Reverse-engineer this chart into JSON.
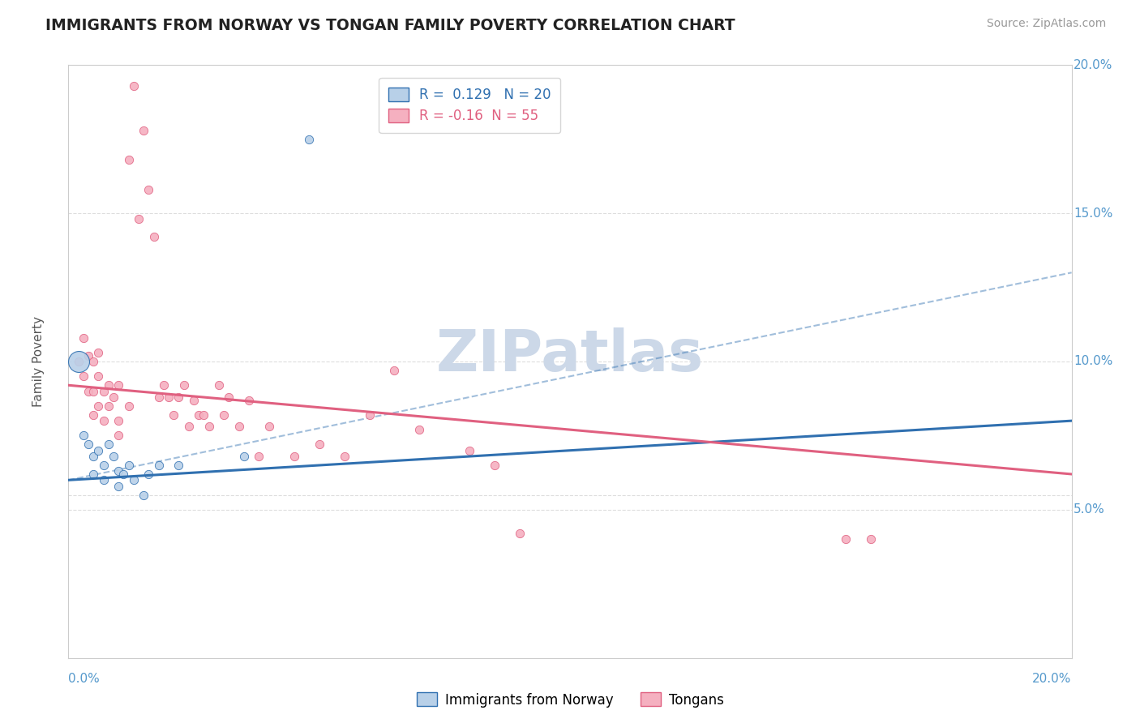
{
  "title": "IMMIGRANTS FROM NORWAY VS TONGAN FAMILY POVERTY CORRELATION CHART",
  "source": "Source: ZipAtlas.com",
  "ylabel": "Family Poverty",
  "xmin": 0.0,
  "xmax": 0.2,
  "ymin": 0.0,
  "ymax": 0.2,
  "yticks": [
    0.05,
    0.1,
    0.15,
    0.2
  ],
  "ytick_labels": [
    "5.0%",
    "10.0%",
    "15.0%",
    "20.0%"
  ],
  "norway_R": 0.129,
  "norway_N": 20,
  "tongan_R": -0.16,
  "tongan_N": 55,
  "norway_color": "#b8d0e8",
  "tongan_color": "#f5b0c0",
  "norway_line_color": "#3070b0",
  "tongan_line_color": "#e06080",
  "norway_scatter": [
    [
      0.003,
      0.075
    ],
    [
      0.004,
      0.072
    ],
    [
      0.005,
      0.068
    ],
    [
      0.005,
      0.062
    ],
    [
      0.006,
      0.07
    ],
    [
      0.007,
      0.065
    ],
    [
      0.007,
      0.06
    ],
    [
      0.008,
      0.072
    ],
    [
      0.009,
      0.068
    ],
    [
      0.01,
      0.063
    ],
    [
      0.01,
      0.058
    ],
    [
      0.011,
      0.062
    ],
    [
      0.012,
      0.065
    ],
    [
      0.013,
      0.06
    ],
    [
      0.015,
      0.055
    ],
    [
      0.016,
      0.062
    ],
    [
      0.018,
      0.065
    ],
    [
      0.022,
      0.065
    ],
    [
      0.035,
      0.068
    ],
    [
      0.048,
      0.175
    ]
  ],
  "norway_sizes": [
    60,
    60,
    60,
    60,
    60,
    60,
    60,
    60,
    60,
    60,
    60,
    60,
    60,
    60,
    60,
    60,
    60,
    60,
    60,
    60
  ],
  "tongan_scatter": [
    [
      0.002,
      0.1
    ],
    [
      0.003,
      0.108
    ],
    [
      0.003,
      0.095
    ],
    [
      0.004,
      0.102
    ],
    [
      0.004,
      0.09
    ],
    [
      0.005,
      0.1
    ],
    [
      0.005,
      0.09
    ],
    [
      0.005,
      0.082
    ],
    [
      0.006,
      0.095
    ],
    [
      0.006,
      0.085
    ],
    [
      0.006,
      0.103
    ],
    [
      0.007,
      0.09
    ],
    [
      0.007,
      0.08
    ],
    [
      0.008,
      0.092
    ],
    [
      0.008,
      0.085
    ],
    [
      0.009,
      0.088
    ],
    [
      0.01,
      0.092
    ],
    [
      0.01,
      0.08
    ],
    [
      0.01,
      0.075
    ],
    [
      0.012,
      0.085
    ],
    [
      0.012,
      0.168
    ],
    [
      0.013,
      0.193
    ],
    [
      0.014,
      0.148
    ],
    [
      0.015,
      0.178
    ],
    [
      0.016,
      0.158
    ],
    [
      0.017,
      0.142
    ],
    [
      0.018,
      0.088
    ],
    [
      0.019,
      0.092
    ],
    [
      0.02,
      0.088
    ],
    [
      0.021,
      0.082
    ],
    [
      0.022,
      0.088
    ],
    [
      0.023,
      0.092
    ],
    [
      0.024,
      0.078
    ],
    [
      0.025,
      0.087
    ],
    [
      0.026,
      0.082
    ],
    [
      0.027,
      0.082
    ],
    [
      0.028,
      0.078
    ],
    [
      0.03,
      0.092
    ],
    [
      0.031,
      0.082
    ],
    [
      0.032,
      0.088
    ],
    [
      0.034,
      0.078
    ],
    [
      0.036,
      0.087
    ],
    [
      0.038,
      0.068
    ],
    [
      0.04,
      0.078
    ],
    [
      0.045,
      0.068
    ],
    [
      0.05,
      0.072
    ],
    [
      0.055,
      0.068
    ],
    [
      0.06,
      0.082
    ],
    [
      0.065,
      0.097
    ],
    [
      0.07,
      0.077
    ],
    [
      0.08,
      0.07
    ],
    [
      0.085,
      0.065
    ],
    [
      0.09,
      0.042
    ],
    [
      0.155,
      0.04
    ],
    [
      0.16,
      0.04
    ]
  ],
  "large_norway_bubble": [
    0.002,
    0.1,
    350
  ],
  "norway_line": [
    0.06,
    0.08
  ],
  "tongan_line": [
    0.092,
    0.062
  ],
  "dash_line": [
    0.06,
    0.13
  ],
  "watermark_text": "ZIPatlas",
  "watermark_color": "#ccd8e8",
  "background_color": "#ffffff",
  "grid_color": "#dddddd",
  "border_color": "#cccccc",
  "axis_label_color": "#5599cc",
  "title_color": "#222222",
  "source_color": "#999999"
}
